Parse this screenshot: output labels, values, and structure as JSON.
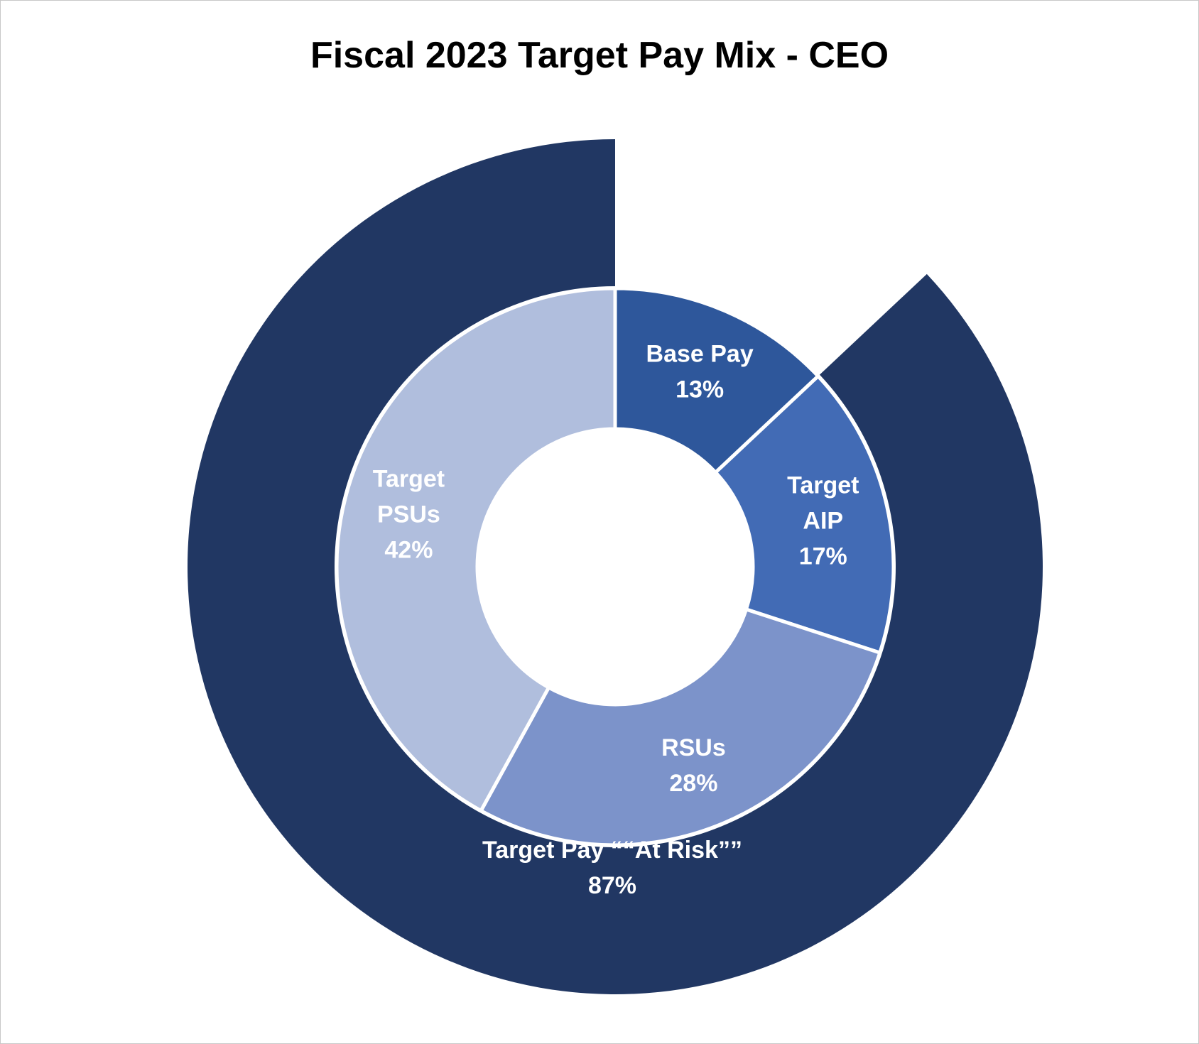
{
  "chart_data": {
    "type": "donut",
    "title": "Fiscal 2023 Target Pay Mix - CEO",
    "inner_ring": {
      "slices": [
        {
          "label_lines": [
            "Base Pay"
          ],
          "value": 13,
          "value_label": "13%",
          "color": "#2e579b"
        },
        {
          "label_lines": [
            "Target",
            "AIP"
          ],
          "value": 17,
          "value_label": "17%",
          "color": "#426bb5"
        },
        {
          "label_lines": [
            "RSUs"
          ],
          "value": 28,
          "value_label": "28%",
          "color": "#7c93ca"
        },
        {
          "label_lines": [
            "Target",
            "PSUs"
          ],
          "value": 42,
          "value_label": "42%",
          "color": "#b0bedd"
        }
      ]
    },
    "outer_ring": {
      "slices": [
        {
          "label_lines": [
            "Target Pay ““At Risk””"
          ],
          "value": 87,
          "value_label": "87%",
          "color": "#213763"
        }
      ],
      "gap_label": "Base Pay",
      "gap_value": 13
    },
    "legend": "none",
    "grid": false
  }
}
